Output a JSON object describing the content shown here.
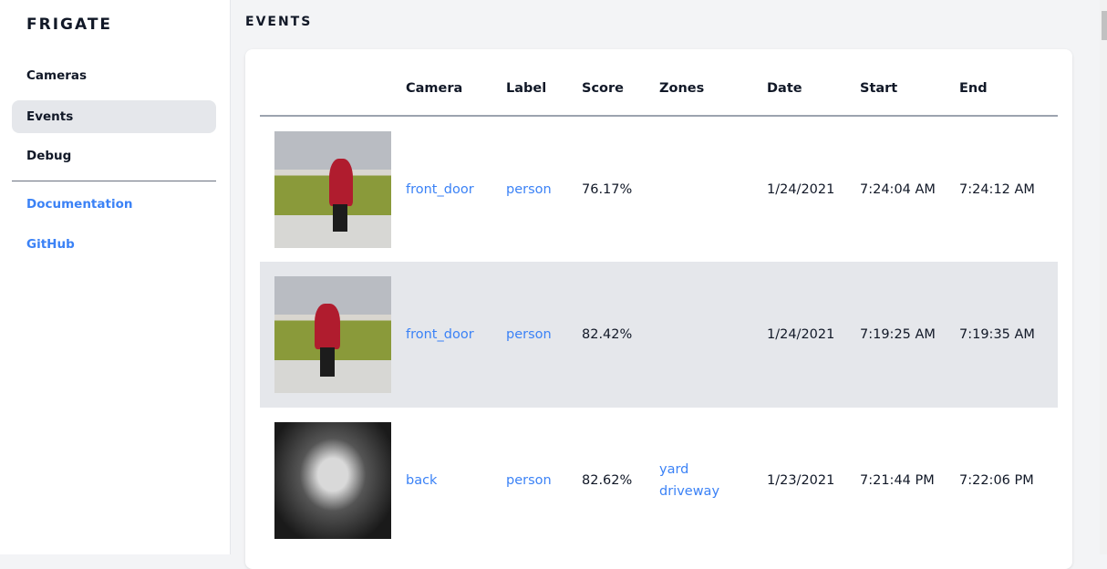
{
  "sidebar": {
    "brand": "FRIGATE",
    "items": [
      {
        "label": "Cameras"
      },
      {
        "label": "Events"
      },
      {
        "label": "Debug"
      }
    ],
    "links": [
      {
        "label": "Documentation"
      },
      {
        "label": "GitHub"
      }
    ]
  },
  "page_title": "EVENTS",
  "table": {
    "headers": [
      "",
      "Camera",
      "Label",
      "Score",
      "Zones",
      "Date",
      "Start",
      "End"
    ],
    "rows": [
      {
        "camera": "front_door",
        "label": "person",
        "score": "76.17%",
        "zones": [
          "",
          ""
        ],
        "date": "1/24/2021",
        "start": "7:24:04 AM",
        "end": "7:24:12 AM"
      },
      {
        "camera": "front_door",
        "label": "person",
        "score": "82.42%",
        "zones": [
          "",
          ""
        ],
        "date": "1/24/2021",
        "start": "7:19:25 AM",
        "end": "7:19:35 AM"
      },
      {
        "camera": "back",
        "label": "person",
        "score": "82.62%",
        "zones": [
          "yard",
          "driveway"
        ],
        "date": "1/23/2021",
        "start": "7:21:44 PM",
        "end": "7:22:06 PM"
      }
    ]
  },
  "colors": {
    "accent": "#3b82f6",
    "active_bg": "#e5e7eb"
  }
}
